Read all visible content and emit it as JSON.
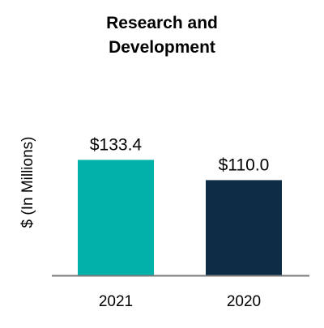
{
  "chart_data": {
    "type": "bar",
    "title_lines": [
      "Research and",
      "Development"
    ],
    "ylabel": "$ (In Millions)",
    "xlabel": "",
    "categories": [
      "2021",
      "2020"
    ],
    "values": [
      133.4,
      110.0
    ],
    "value_labels": [
      "$133.4",
      "$110.0"
    ],
    "colors": [
      "#00b2a9",
      "#0d2c45"
    ],
    "ylim": [
      0,
      290
    ],
    "grid": false,
    "legend": "none"
  }
}
